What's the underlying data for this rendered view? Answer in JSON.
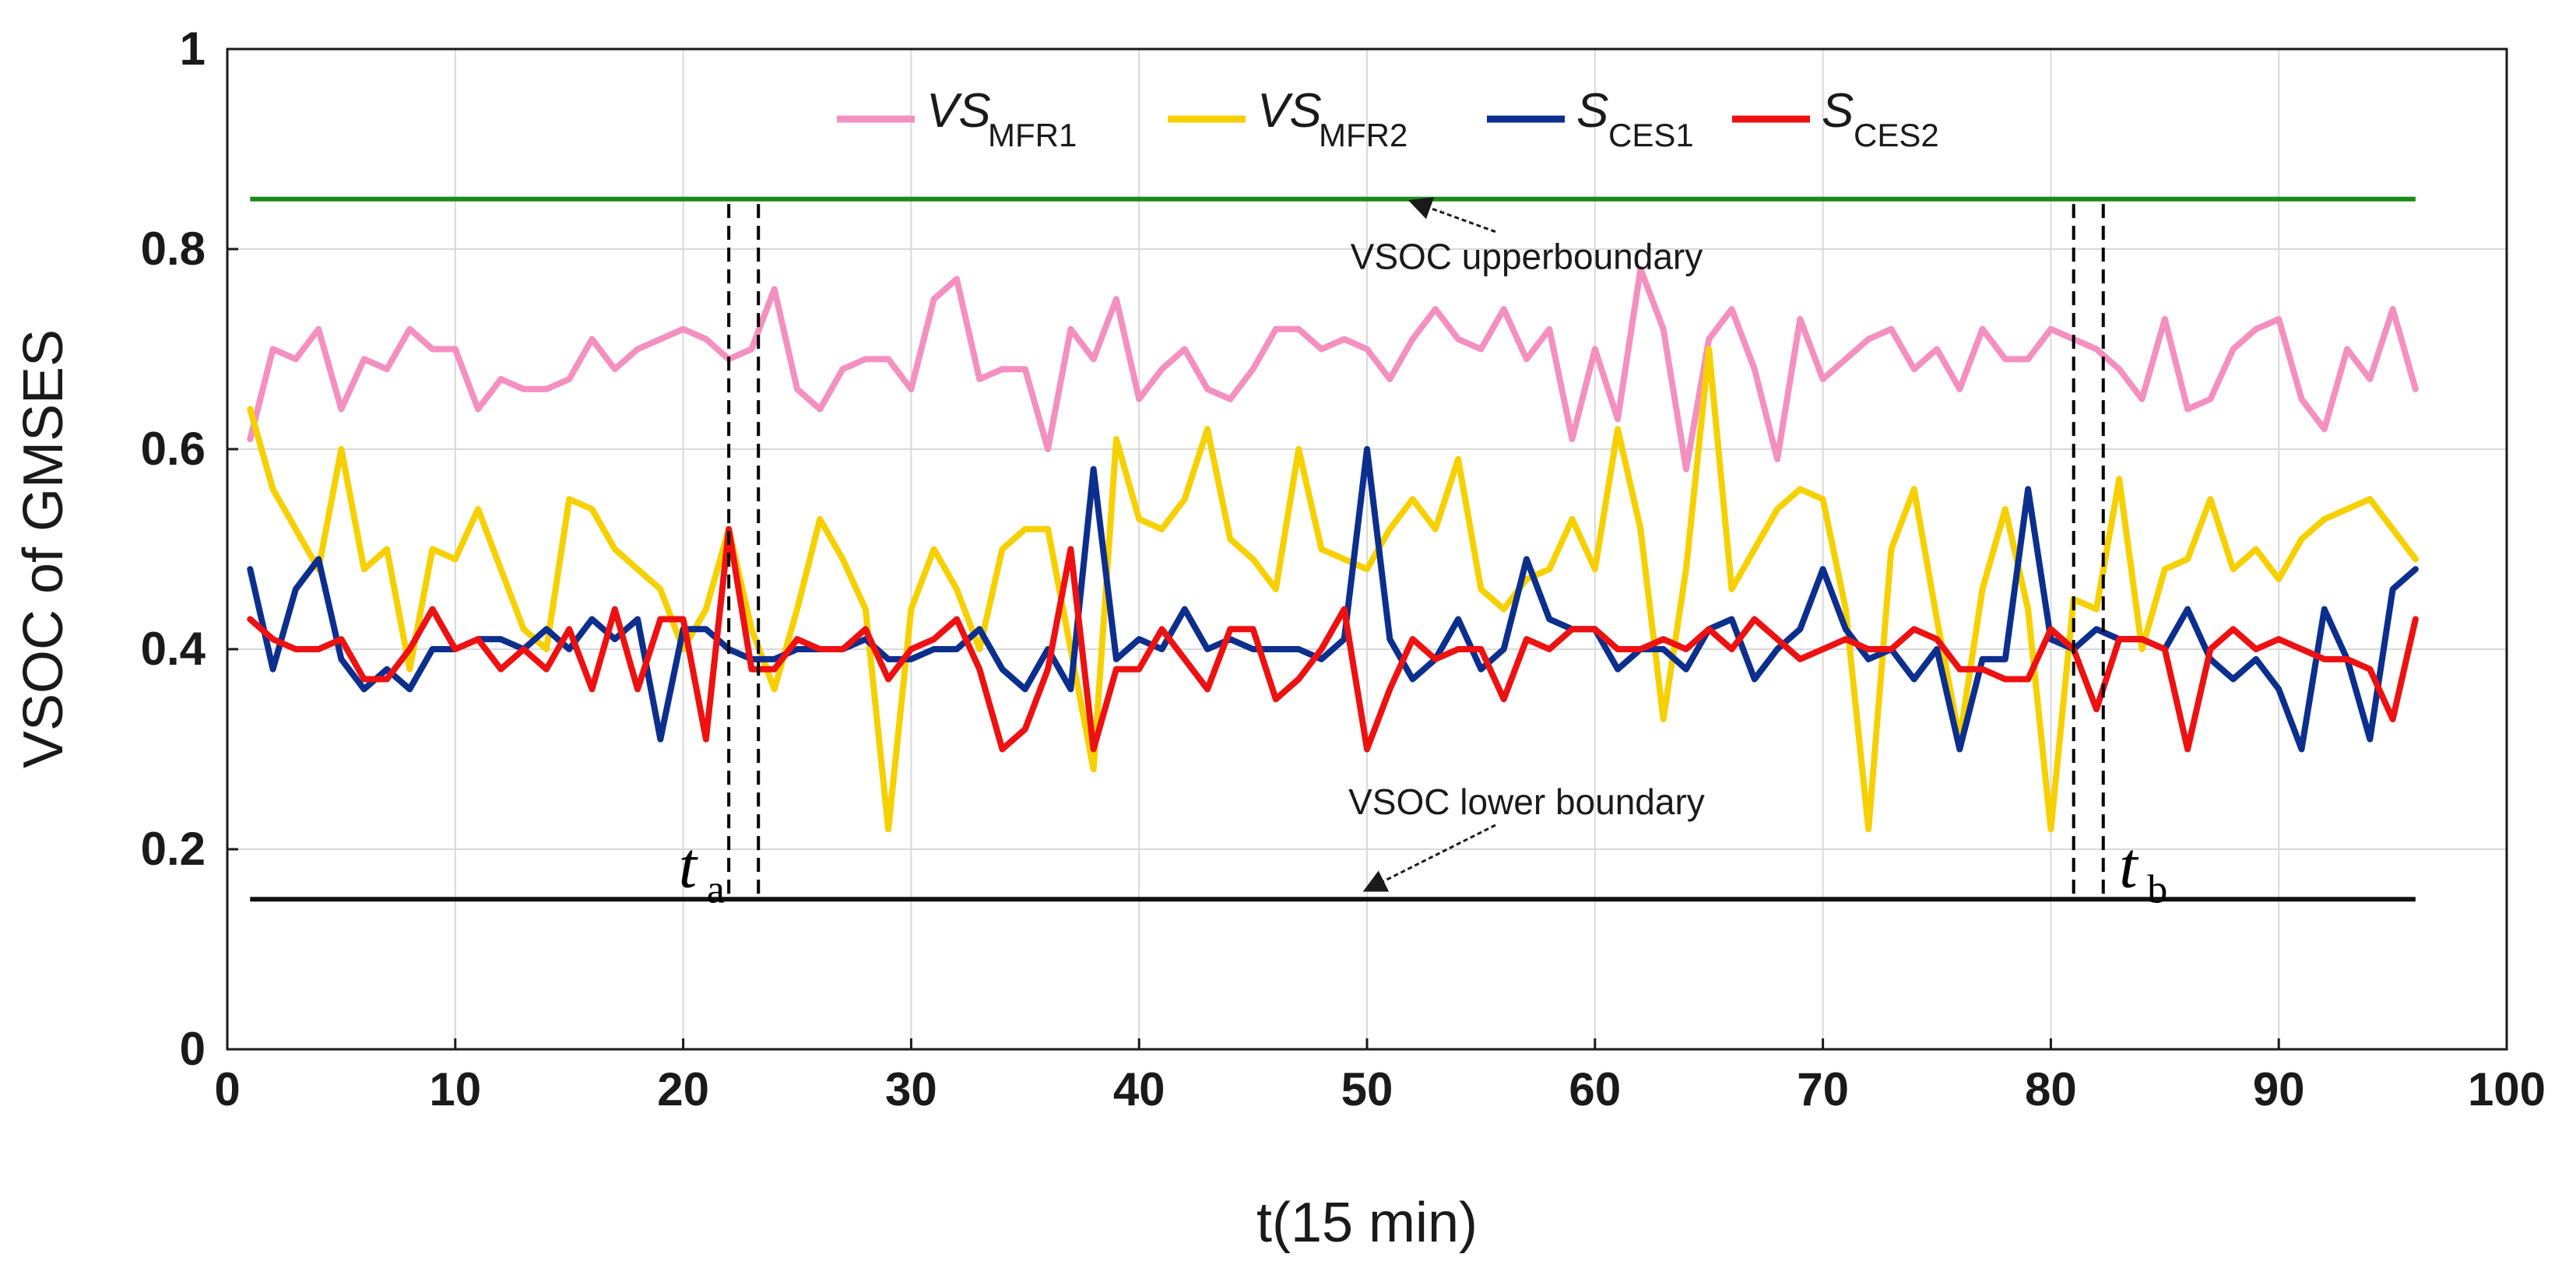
{
  "chart_data": {
    "type": "line",
    "xlabel": "t(15 min)",
    "ylabel": "VSOC of GMSES",
    "xlim": [
      0,
      100
    ],
    "ylim": [
      0,
      1
    ],
    "xticks": [
      "0",
      "10",
      "20",
      "30",
      "40",
      "50",
      "60",
      "70",
      "80",
      "90",
      "100"
    ],
    "yticks": [
      "0",
      "0.2",
      "0.4",
      "0.6",
      "0.8",
      "1"
    ],
    "grid": true,
    "legend_position": "top",
    "x": [
      1,
      2,
      3,
      4,
      5,
      6,
      7,
      8,
      9,
      10,
      11,
      12,
      13,
      14,
      15,
      16,
      17,
      18,
      19,
      20,
      21,
      22,
      23,
      24,
      25,
      26,
      27,
      28,
      29,
      30,
      31,
      32,
      33,
      34,
      35,
      36,
      37,
      38,
      39,
      40,
      41,
      42,
      43,
      44,
      45,
      46,
      47,
      48,
      49,
      50,
      51,
      52,
      53,
      54,
      55,
      56,
      57,
      58,
      59,
      60,
      61,
      62,
      63,
      64,
      65,
      66,
      67,
      68,
      69,
      70,
      71,
      72,
      73,
      74,
      75,
      76,
      77,
      78,
      79,
      80,
      81,
      82,
      83,
      84,
      85,
      86,
      87,
      88,
      89,
      90,
      91,
      92,
      93,
      94,
      95,
      96
    ],
    "series": [
      {
        "name": "VS_MFR1",
        "legend_main": "VS",
        "legend_sub": "MFR1",
        "color": "#f490c0",
        "values": [
          0.61,
          0.7,
          0.69,
          0.72,
          0.64,
          0.69,
          0.68,
          0.72,
          0.7,
          0.7,
          0.64,
          0.67,
          0.66,
          0.66,
          0.67,
          0.71,
          0.68,
          0.7,
          0.71,
          0.72,
          0.71,
          0.69,
          0.7,
          0.76,
          0.66,
          0.64,
          0.68,
          0.69,
          0.69,
          0.66,
          0.75,
          0.77,
          0.67,
          0.68,
          0.68,
          0.6,
          0.72,
          0.69,
          0.75,
          0.65,
          0.68,
          0.7,
          0.66,
          0.65,
          0.68,
          0.72,
          0.72,
          0.7,
          0.71,
          0.7,
          0.67,
          0.71,
          0.74,
          0.71,
          0.7,
          0.74,
          0.69,
          0.72,
          0.61,
          0.7,
          0.63,
          0.78,
          0.72,
          0.58,
          0.71,
          0.74,
          0.68,
          0.59,
          0.73,
          0.67,
          0.69,
          0.71,
          0.72,
          0.68,
          0.7,
          0.66,
          0.72,
          0.69,
          0.69,
          0.72,
          0.71,
          0.7,
          0.68,
          0.65,
          0.73,
          0.64,
          0.65,
          0.7,
          0.72,
          0.73,
          0.65,
          0.62,
          0.7,
          0.67,
          0.74,
          0.66
        ]
      },
      {
        "name": "VS_MFR2",
        "legend_main": "VS",
        "legend_sub": "MFR2",
        "color": "#f7d000",
        "values": [
          0.64,
          0.56,
          0.52,
          0.48,
          0.6,
          0.48,
          0.5,
          0.38,
          0.5,
          0.49,
          0.54,
          0.48,
          0.42,
          0.4,
          0.55,
          0.54,
          0.5,
          0.48,
          0.46,
          0.4,
          0.44,
          0.52,
          0.42,
          0.36,
          0.44,
          0.53,
          0.49,
          0.44,
          0.22,
          0.44,
          0.5,
          0.46,
          0.4,
          0.5,
          0.52,
          0.52,
          0.4,
          0.28,
          0.61,
          0.53,
          0.52,
          0.55,
          0.62,
          0.51,
          0.49,
          0.46,
          0.6,
          0.5,
          0.49,
          0.48,
          0.52,
          0.55,
          0.52,
          0.59,
          0.46,
          0.44,
          0.47,
          0.48,
          0.53,
          0.48,
          0.62,
          0.52,
          0.33,
          0.48,
          0.7,
          0.46,
          0.5,
          0.54,
          0.56,
          0.55,
          0.44,
          0.22,
          0.5,
          0.56,
          0.43,
          0.31,
          0.46,
          0.54,
          0.44,
          0.22,
          0.45,
          0.44,
          0.57,
          0.4,
          0.48,
          0.49,
          0.55,
          0.48,
          0.5,
          0.47,
          0.51,
          0.53,
          0.54,
          0.55,
          0.52,
          0.49
        ]
      },
      {
        "name": "S_CES1",
        "legend_main": "S",
        "legend_sub": "CES1",
        "color": "#0c2f8e",
        "values": [
          0.48,
          0.38,
          0.46,
          0.49,
          0.39,
          0.36,
          0.38,
          0.36,
          0.4,
          0.4,
          0.41,
          0.41,
          0.4,
          0.42,
          0.4,
          0.43,
          0.41,
          0.43,
          0.31,
          0.42,
          0.42,
          0.4,
          0.39,
          0.39,
          0.4,
          0.4,
          0.4,
          0.41,
          0.39,
          0.39,
          0.4,
          0.4,
          0.42,
          0.38,
          0.36,
          0.4,
          0.36,
          0.58,
          0.39,
          0.41,
          0.4,
          0.44,
          0.4,
          0.41,
          0.4,
          0.4,
          0.4,
          0.39,
          0.41,
          0.6,
          0.41,
          0.37,
          0.39,
          0.43,
          0.38,
          0.4,
          0.49,
          0.43,
          0.42,
          0.42,
          0.38,
          0.4,
          0.4,
          0.38,
          0.42,
          0.43,
          0.37,
          0.4,
          0.42,
          0.48,
          0.42,
          0.39,
          0.4,
          0.37,
          0.4,
          0.3,
          0.39,
          0.39,
          0.56,
          0.41,
          0.4,
          0.42,
          0.41,
          0.41,
          0.4,
          0.44,
          0.39,
          0.37,
          0.39,
          0.36,
          0.3,
          0.44,
          0.39,
          0.31,
          0.46,
          0.48
        ]
      },
      {
        "name": "S_CES2",
        "legend_main": "S",
        "legend_sub": "CES2",
        "color": "#ee1111",
        "values": [
          0.43,
          0.41,
          0.4,
          0.4,
          0.41,
          0.37,
          0.37,
          0.4,
          0.44,
          0.4,
          0.41,
          0.38,
          0.4,
          0.38,
          0.42,
          0.36,
          0.44,
          0.36,
          0.43,
          0.43,
          0.31,
          0.52,
          0.38,
          0.38,
          0.41,
          0.4,
          0.4,
          0.42,
          0.37,
          0.4,
          0.41,
          0.43,
          0.38,
          0.3,
          0.32,
          0.38,
          0.5,
          0.3,
          0.38,
          0.38,
          0.42,
          0.39,
          0.36,
          0.42,
          0.42,
          0.35,
          0.37,
          0.4,
          0.44,
          0.3,
          0.36,
          0.41,
          0.39,
          0.4,
          0.4,
          0.35,
          0.41,
          0.4,
          0.42,
          0.42,
          0.4,
          0.4,
          0.41,
          0.4,
          0.42,
          0.4,
          0.43,
          0.41,
          0.39,
          0.4,
          0.41,
          0.4,
          0.4,
          0.42,
          0.41,
          0.38,
          0.38,
          0.37,
          0.37,
          0.42,
          0.4,
          0.34,
          0.41,
          0.41,
          0.4,
          0.3,
          0.4,
          0.42,
          0.4,
          0.41,
          0.4,
          0.39,
          0.39,
          0.38,
          0.33,
          0.43
        ]
      }
    ],
    "hlines": [
      {
        "y": 0.85,
        "color": "#1a8a1a",
        "label": "VSOC upperboundary",
        "label_x": 57,
        "label_y": 0.78,
        "arrow_x": 52,
        "arrow_y": 0.852
      },
      {
        "y": 0.15,
        "color": "#111111",
        "label": "VSOC lower boundary",
        "label_x": 57,
        "label_y": 0.235,
        "arrow_x": 50,
        "arrow_y": 0.155
      }
    ],
    "vlines": [
      {
        "x": 22.0
      },
      {
        "x": 23.3
      },
      {
        "x": 81.0
      },
      {
        "x": 82.3
      }
    ],
    "markers": [
      {
        "main": "t",
        "sub": "a",
        "x": 19.8,
        "y": 0.17
      },
      {
        "main": "t",
        "sub": "b",
        "x": 83.0,
        "y": 0.17
      }
    ]
  }
}
